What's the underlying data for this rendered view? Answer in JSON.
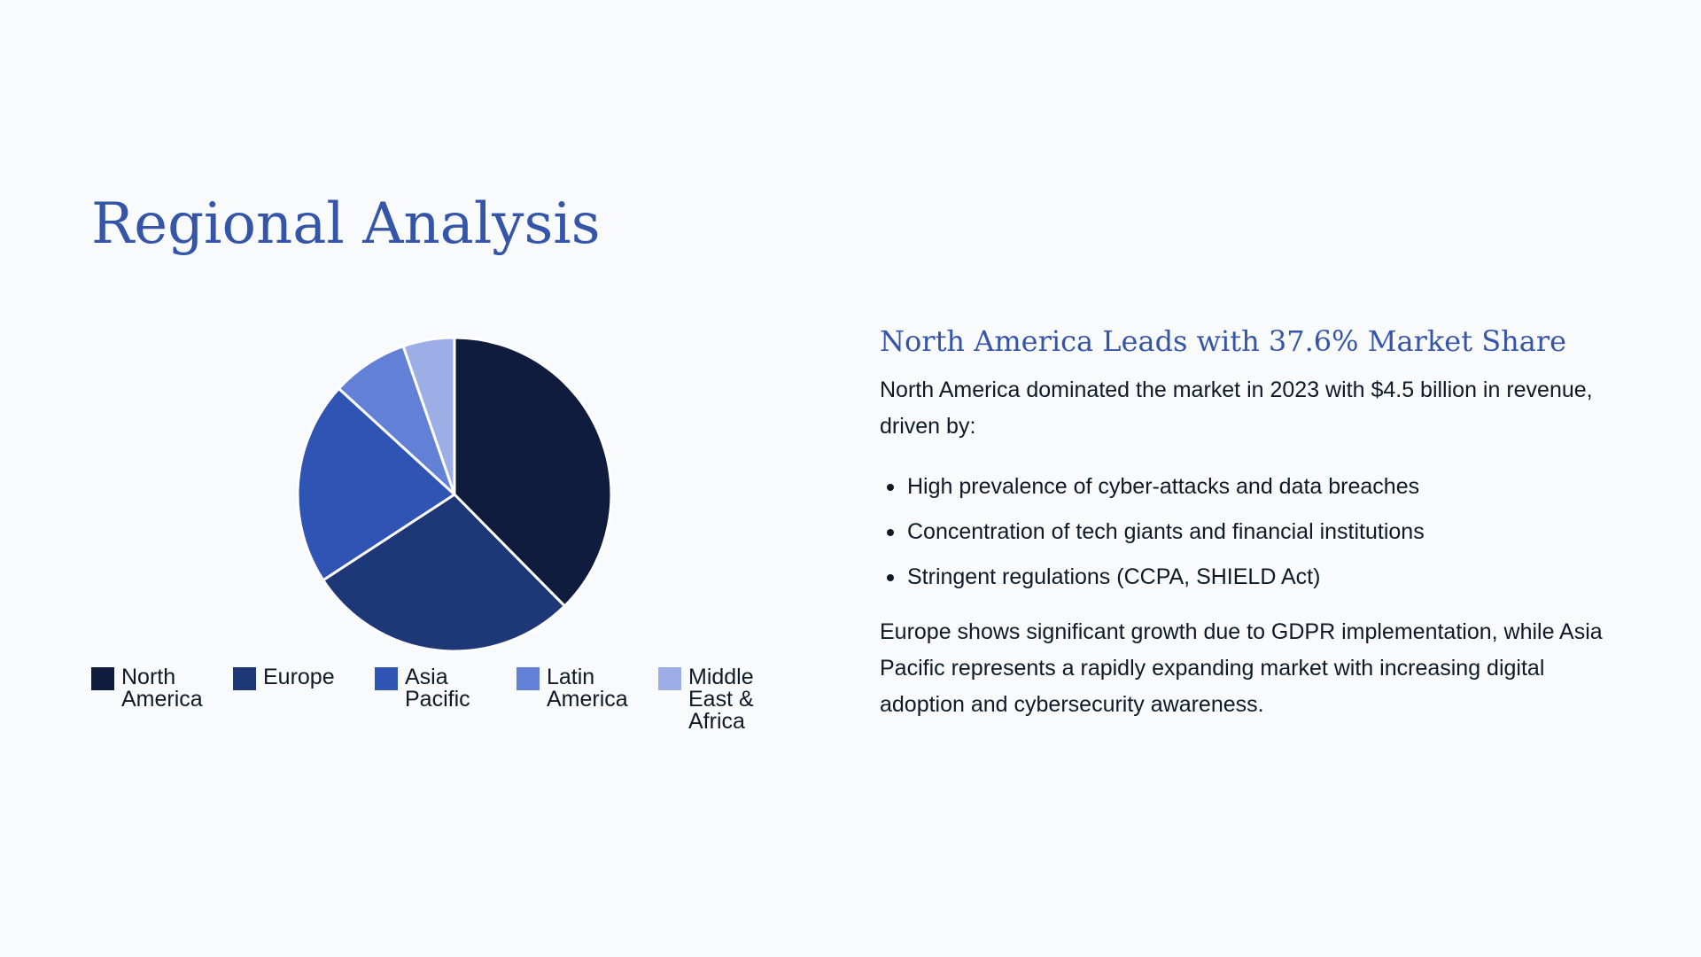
{
  "title": "Regional Analysis",
  "chart_data": {
    "type": "pie",
    "categories": [
      "North\nAmerica",
      "Europe",
      "Asia\nPacific",
      "Latin\nAmerica",
      "Middle\nEast &\nAfrica"
    ],
    "values": [
      37.6,
      28.2,
      21.0,
      7.9,
      5.3
    ],
    "colors": [
      "#101c3d",
      "#1e3877",
      "#3054b3",
      "#6280d5",
      "#9dade5"
    ],
    "legend_position": "bottom"
  },
  "insights": {
    "heading": "North America Leads with 37.6% Market Share",
    "intro": "North America dominated the market in 2023 with $4.5 billion in revenue, driven by:",
    "bullets": [
      "High prevalence of cyber-attacks and data breaches",
      "Concentration of tech giants and financial institutions",
      "Stringent regulations (CCPA, SHIELD Act)"
    ],
    "closing": "Europe shows significant growth due to GDPR implementation, while Asia Pacific represents a rapidly expanding market with increasing digital adoption and cybersecurity awareness."
  }
}
